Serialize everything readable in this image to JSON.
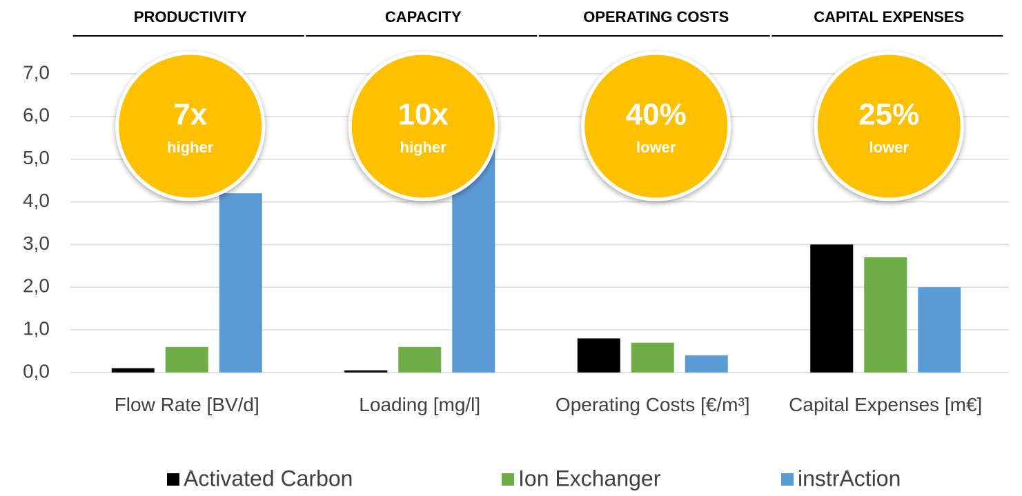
{
  "chart_data": {
    "type": "bar",
    "categories": [
      "Flow Rate [BV/d]",
      "Loading [mg/l]",
      "Operating Costs [€/m³]",
      "Capital Expenses [m€]"
    ],
    "series": [
      {
        "name": "Activated Carbon",
        "color": "#000000",
        "values": [
          0.1,
          0.05,
          0.8,
          3.0
        ]
      },
      {
        "name": "Ion Exchanger",
        "color": "#70AD47",
        "values": [
          0.6,
          0.6,
          0.7,
          2.7
        ]
      },
      {
        "name": "instrAction",
        "color": "#5B9BD5",
        "values": [
          4.2,
          6.0,
          0.4,
          2.0
        ]
      }
    ],
    "ylim": [
      0,
      7
    ],
    "yticks": [
      {
        "value": 0,
        "label": "0,0"
      },
      {
        "value": 1,
        "label": "1,0"
      },
      {
        "value": 2,
        "label": "2,0"
      },
      {
        "value": 3,
        "label": "3,0"
      },
      {
        "value": 4,
        "label": "4,0"
      },
      {
        "value": 5,
        "label": "5,0"
      },
      {
        "value": 6,
        "label": "6,0"
      },
      {
        "value": 7,
        "label": "7,0"
      }
    ],
    "grid": true,
    "annotations": [
      {
        "header": "PRODUCTIVITY",
        "badge": "7x",
        "note": "higher"
      },
      {
        "header": "CAPACITY",
        "badge": "10x",
        "note": "higher"
      },
      {
        "header": "OPERATING COSTS",
        "badge": "40%",
        "note": "lower"
      },
      {
        "header": "CAPITAL EXPENSES",
        "badge": "25%",
        "note": "lower"
      }
    ]
  }
}
